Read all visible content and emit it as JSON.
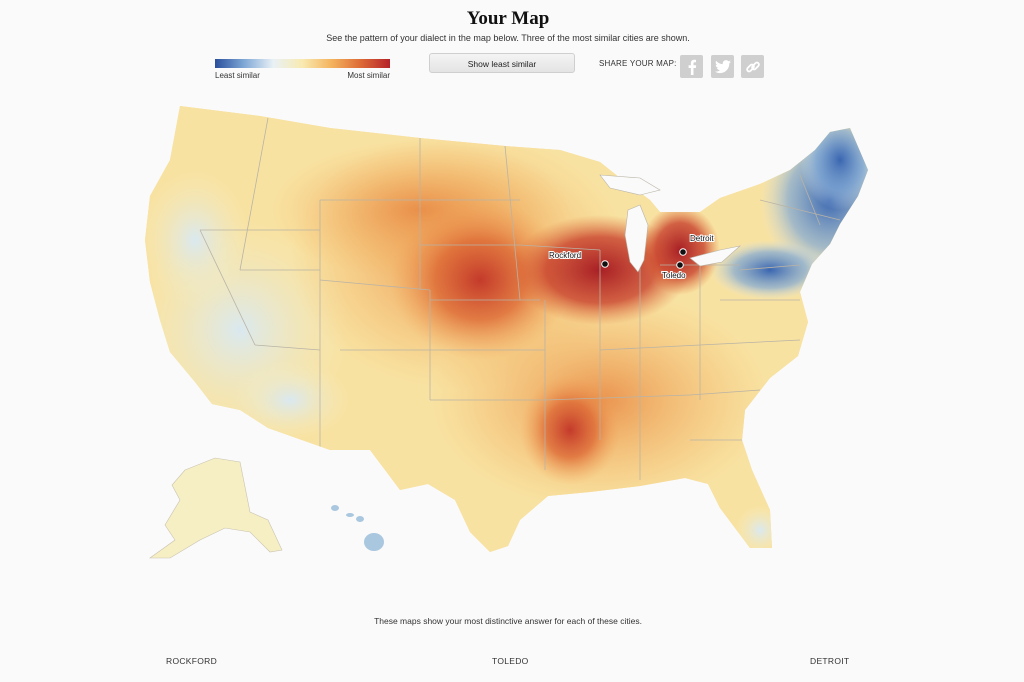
{
  "title": "Your Map",
  "subtitle": "See the pattern of your dialect in the map below. Three of the most similar cities are shown.",
  "legend": {
    "left_label": "Least similar",
    "right_label": "Most similar",
    "colors": [
      "#2a4f9c",
      "#7fa8d6",
      "#e9f1f5",
      "#f8eab0",
      "#f4b35e",
      "#dd6a36",
      "#b5232a"
    ]
  },
  "button": {
    "label": "Show least similar"
  },
  "share": {
    "label": "SHARE YOUR MAP:",
    "icons": [
      "facebook-icon",
      "twitter-icon",
      "link-icon"
    ]
  },
  "map": {
    "cities": [
      {
        "name": "Rockford"
      },
      {
        "name": "Detroit"
      },
      {
        "name": "Toledo"
      }
    ]
  },
  "footer": {
    "text": "These maps show your most distinctive answer for each of these cities.",
    "cities": [
      "ROCKFORD",
      "TOLEDO",
      "DETROIT"
    ]
  }
}
